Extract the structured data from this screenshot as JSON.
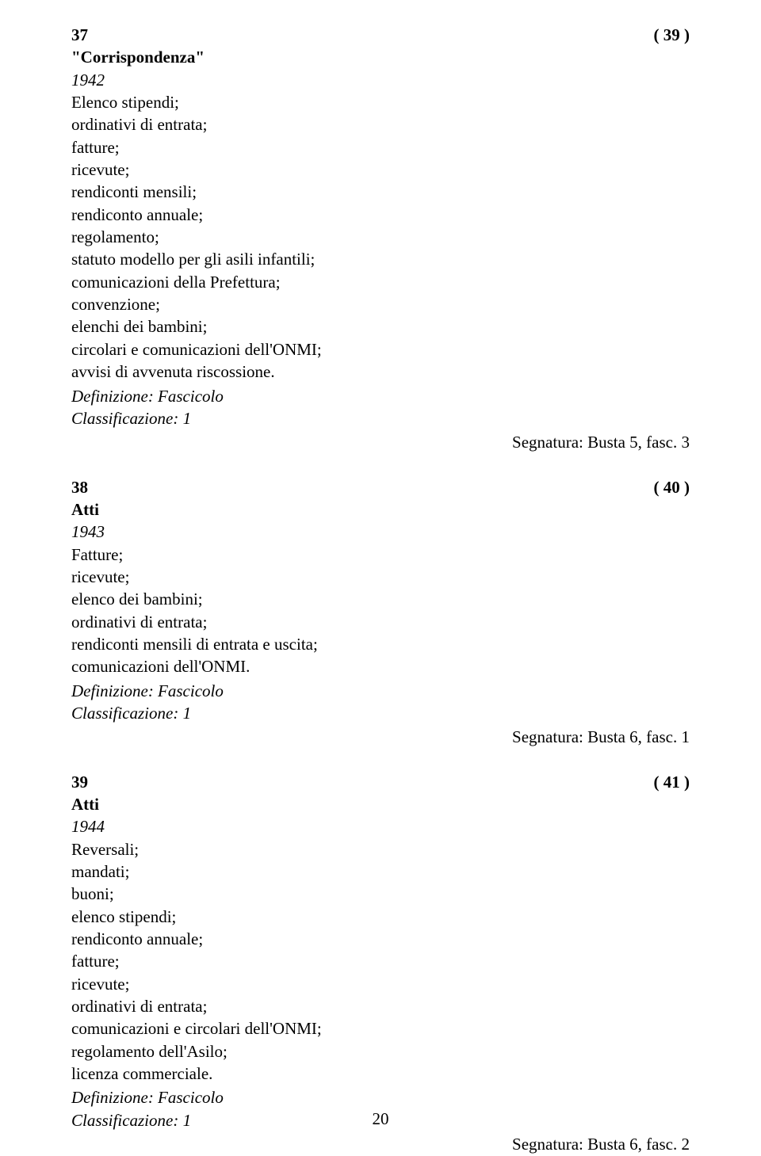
{
  "page_number": "20",
  "entries": [
    {
      "num": "37",
      "ref": "( 39 )",
      "title": "\"Corrispondenza\"",
      "year": "1942",
      "lines": [
        "Elenco stipendi;",
        "ordinativi di entrata;",
        "fatture;",
        "ricevute;",
        "rendiconti mensili;",
        "rendiconto annuale;",
        "regolamento;",
        "statuto modello per gli asili infantili;",
        "comunicazioni della Prefettura;",
        "convenzione;",
        "elenchi dei bambini;",
        "circolari e comunicazioni dell'ONMI;",
        "avvisi di avvenuta riscossione."
      ],
      "definizione": "Definizione: Fascicolo",
      "classificazione": "Classificazione: 1",
      "segnatura": "Segnatura: Busta 5, fasc. 3"
    },
    {
      "num": "38",
      "ref": "( 40 )",
      "title": "Atti",
      "year": "1943",
      "lines": [
        "Fatture;",
        "ricevute;",
        "elenco dei bambini;",
        "ordinativi di entrata;",
        "rendiconti mensili di entrata e uscita;",
        "comunicazioni dell'ONMI."
      ],
      "definizione": "Definizione: Fascicolo",
      "classificazione": "Classificazione: 1",
      "segnatura": "Segnatura: Busta 6, fasc. 1"
    },
    {
      "num": "39",
      "ref": "( 41 )",
      "title": "Atti",
      "year": "1944",
      "lines": [
        "Reversali;",
        "mandati;",
        "buoni;",
        "elenco stipendi;",
        "rendiconto annuale;",
        "fatture;",
        "ricevute;",
        "ordinativi di entrata;",
        "comunicazioni e circolari dell'ONMI;",
        "regolamento dell'Asilo;",
        "licenza commerciale."
      ],
      "definizione": "Definizione: Fascicolo",
      "classificazione": "Classificazione: 1",
      "segnatura": "Segnatura: Busta 6, fasc. 2"
    }
  ]
}
